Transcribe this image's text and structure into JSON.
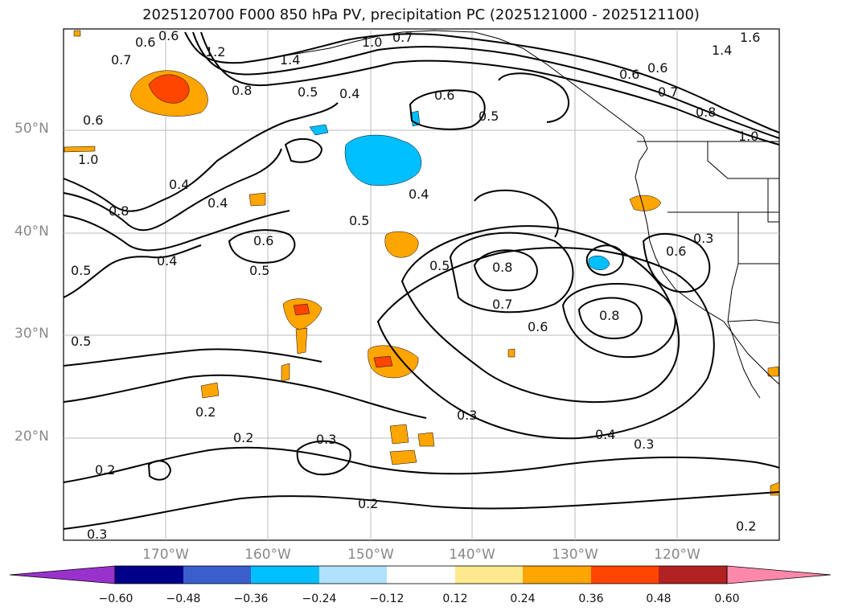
{
  "title": "2025120700 F000 850 hPa PV, precipitation PC (2025121000 - 2025121100)",
  "lat_labels": [
    "50°N",
    "40°N",
    "30°N",
    "20°N"
  ],
  "lon_labels": [
    "170°W",
    "160°W",
    "150°W",
    "140°W",
    "130°W",
    "120°W"
  ],
  "contour_labels": [
    "0.6",
    "0.6",
    "1.2",
    "1.4",
    "1.0",
    "0.7",
    "1.6",
    "1.4",
    "0.7",
    "0.8",
    "0.5",
    "0.4",
    "0.6",
    "0.6",
    "0.5",
    "0.6",
    "0.7",
    "0.8",
    "1.0",
    "0.6",
    "1.0",
    "0.4",
    "0.4",
    "0.8",
    "0.5",
    "0.6",
    "0.5",
    "0.5",
    "0.4",
    "0.4",
    "0.6",
    "0.3",
    "0.5",
    "0.8",
    "0.7",
    "0.6",
    "0.8",
    "0.5",
    "0.2",
    "0.2",
    "0.3",
    "0.3",
    "0.4",
    "0.3",
    "0.2",
    "0.3",
    "0.2",
    "0.2"
  ],
  "colorbar": {
    "ticks": [
      "−0.60",
      "−0.48",
      "−0.36",
      "−0.24",
      "−0.12",
      "0.12",
      "0.24",
      "0.36",
      "0.48",
      "0.60"
    ],
    "colors": [
      "#9932cc",
      "#00008b",
      "#3a5fcd",
      "#00bfff",
      "#b0e2ff",
      "#ffffff",
      "#ffe98f",
      "#ffa500",
      "#ff4500",
      "#b22222",
      "#ff88aa"
    ]
  },
  "colors": {
    "precip_pos_low": "#ffa500",
    "precip_pos_mid": "#ff4500",
    "precip_neg": "#00bfff",
    "contour": "#000000",
    "grid": "#bbbbbb"
  }
}
